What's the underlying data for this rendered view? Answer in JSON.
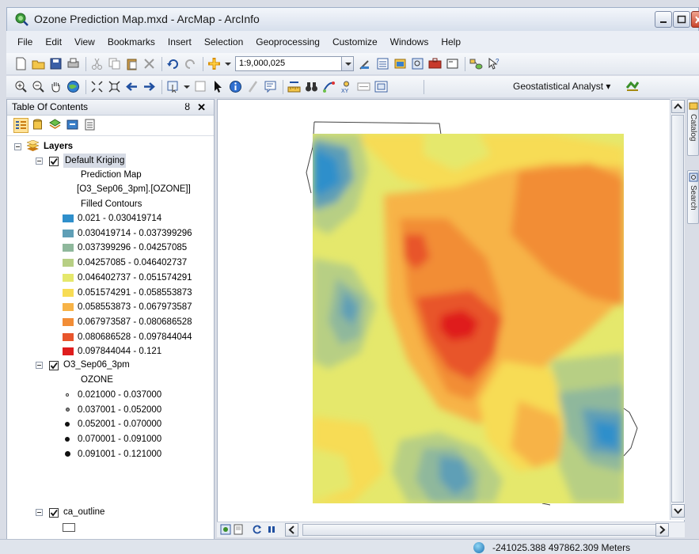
{
  "window": {
    "title": "Ozone Prediction Map.mxd - ArcMap - ArcInfo"
  },
  "menu": [
    "File",
    "Edit",
    "View",
    "Bookmarks",
    "Insert",
    "Selection",
    "Geoprocessing",
    "Customize",
    "Windows",
    "Help"
  ],
  "toolbar": {
    "scale_value": "1:9,000,025",
    "geostat_label": "Geostatistical Analyst ▾"
  },
  "toc": {
    "title": "Table Of Contents",
    "pin": "ȣ",
    "close": "✕",
    "root": "Layers",
    "kriging": {
      "name": "Default Kriging",
      "sub1": "Prediction Map",
      "sub2": "[O3_Sep06_3pm].[OZONE]]",
      "sub3": "Filled Contours",
      "classes": [
        {
          "label": "0.021 - 0.030419714",
          "color": "#2f8fcb"
        },
        {
          "label": "0.030419714 - 0.037399296",
          "color": "#5f9fb6"
        },
        {
          "label": "0.037399296 - 0.04257085",
          "color": "#8fb89c"
        },
        {
          "label": "0.04257085 - 0.046402737",
          "color": "#b7cf84"
        },
        {
          "label": "0.046402737 - 0.051574291",
          "color": "#e5e86c"
        },
        {
          "label": "0.051574291 - 0.058553873",
          "color": "#f7dc54"
        },
        {
          "label": "0.058553873 - 0.067973587",
          "color": "#f7b347"
        },
        {
          "label": "0.067973587 - 0.080686528",
          "color": "#f28d36"
        },
        {
          "label": "0.080686528 - 0.097844044",
          "color": "#e8552c"
        },
        {
          "label": "0.097844044 - 0.121",
          "color": "#df1d1d"
        }
      ]
    },
    "o3": {
      "name": "O3_Sep06_3pm",
      "field": "OZONE",
      "classes": [
        {
          "label": "0.021000 - 0.037000"
        },
        {
          "label": "0.037001 - 0.052000"
        },
        {
          "label": "0.052001 - 0.070000"
        },
        {
          "label": "0.070001 - 0.091000"
        },
        {
          "label": "0.091001 - 0.121000"
        }
      ]
    },
    "outline": {
      "name": "ca_outline"
    }
  },
  "side_tabs": [
    "Catalog",
    "Search"
  ],
  "status": {
    "coordinates": "-241025.388  497862.309 Meters"
  }
}
